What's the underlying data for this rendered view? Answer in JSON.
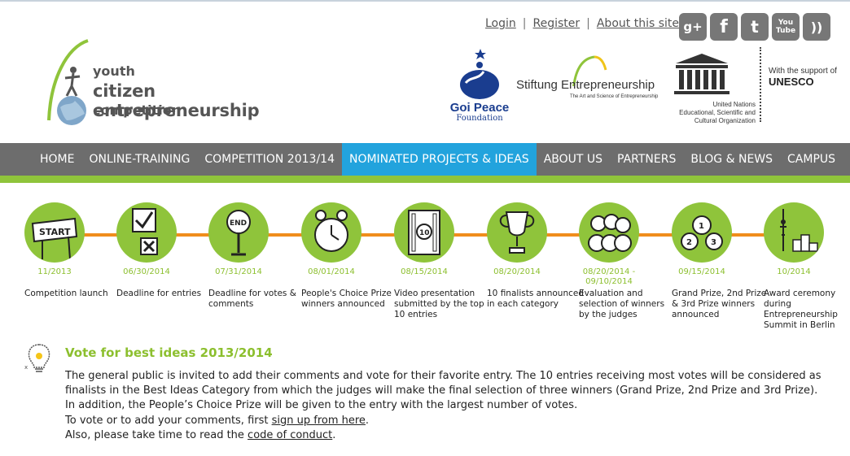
{
  "logo": {
    "line1": "youth",
    "line2": "citizen entrepreneurship",
    "line3": "competition"
  },
  "toplinks": {
    "login": "Login",
    "register": "Register",
    "about": "About this site",
    "separator": "|"
  },
  "social": {
    "items": [
      {
        "icon": "google-plus-icon",
        "glyph": "g+"
      },
      {
        "icon": "facebook-icon",
        "glyph": "f"
      },
      {
        "icon": "twitter-icon",
        "glyph": "t"
      },
      {
        "icon": "youtube-icon",
        "glyph": "You Tube"
      },
      {
        "icon": "rss-icon",
        "glyph": "))"
      }
    ]
  },
  "partners": {
    "goi_name": "Goi Peace",
    "goi_sub": "Foundation",
    "stiftung_name": "Stiftung Entrepreneurship",
    "stiftung_tagline": "The Art and Science of Entrepreneurship",
    "unesco_word": "UNESCO",
    "unesco_caption": [
      "United Nations",
      "Educational, Scientific and",
      "Cultural Organization"
    ],
    "support_line1": "With the support of",
    "support_line2": "UNESCO"
  },
  "nav": {
    "items": [
      "HOME",
      "ONLINE-TRAINING",
      "COMPETITION 2013/14",
      "NOMINATED PROJECTS & IDEAS",
      "ABOUT US",
      "PARTNERS",
      "BLOG & NEWS",
      "CAMPUS"
    ],
    "active_index": 3
  },
  "timeline": [
    {
      "date": "11/2013",
      "label": "Competition launch",
      "icon": "start-sign-icon"
    },
    {
      "date": "06/30/2014",
      "label": "Deadline for entries",
      "icon": "checkbox-icon"
    },
    {
      "date": "07/31/2014",
      "label": "Deadline for votes & comments",
      "icon": "end-sign-icon"
    },
    {
      "date": "08/01/2014",
      "label": "People's Choice Prize winners announced",
      "icon": "alarm-clock-icon"
    },
    {
      "date": "08/15/2014",
      "label": "Video presentation submitted by the top 10 entries",
      "icon": "film-strip-icon"
    },
    {
      "date": "08/20/2014",
      "label": "10 finalists announced in each category",
      "icon": "trophy-icon"
    },
    {
      "date": "08/20/2014 - 09/10/2014",
      "label": "Evaluation and selection of winners by the judges",
      "icon": "judges-icon"
    },
    {
      "date": "09/15/2014",
      "label": "Grand Prize, 2nd Prize & 3rd Prize winners announced",
      "icon": "medals-icon"
    },
    {
      "date": "10/2014",
      "label": "Award ceremony during Entrepreneurship Summit in Berlin",
      "icon": "podium-tower-icon"
    }
  ],
  "vote": {
    "title": "Vote for best ideas 2013/2014",
    "para1": "The general public is invited to add their comments and vote for their favorite entry. The 10 entries receiving most votes will be considered as finalists in the Best Ideas Category from which the judges will make the final selection of three winners (Grand Prize, 2nd Prize and 3rd Prize). In addition, the People’s Choice Prize will be given to the entry with the largest number of votes.",
    "para2_prefix": "To vote or to add your comments, first ",
    "para2_link": "sign up from here",
    "para2_suffix": ".",
    "para3_prefix": "Also, please take time to read the ",
    "para3_link": "code of conduct",
    "para3_suffix": "."
  },
  "colors": {
    "green": "#8fc43b",
    "orange": "#f08d1c",
    "nav_gray": "#6d6d6d",
    "nav_active": "#22a3dd"
  }
}
